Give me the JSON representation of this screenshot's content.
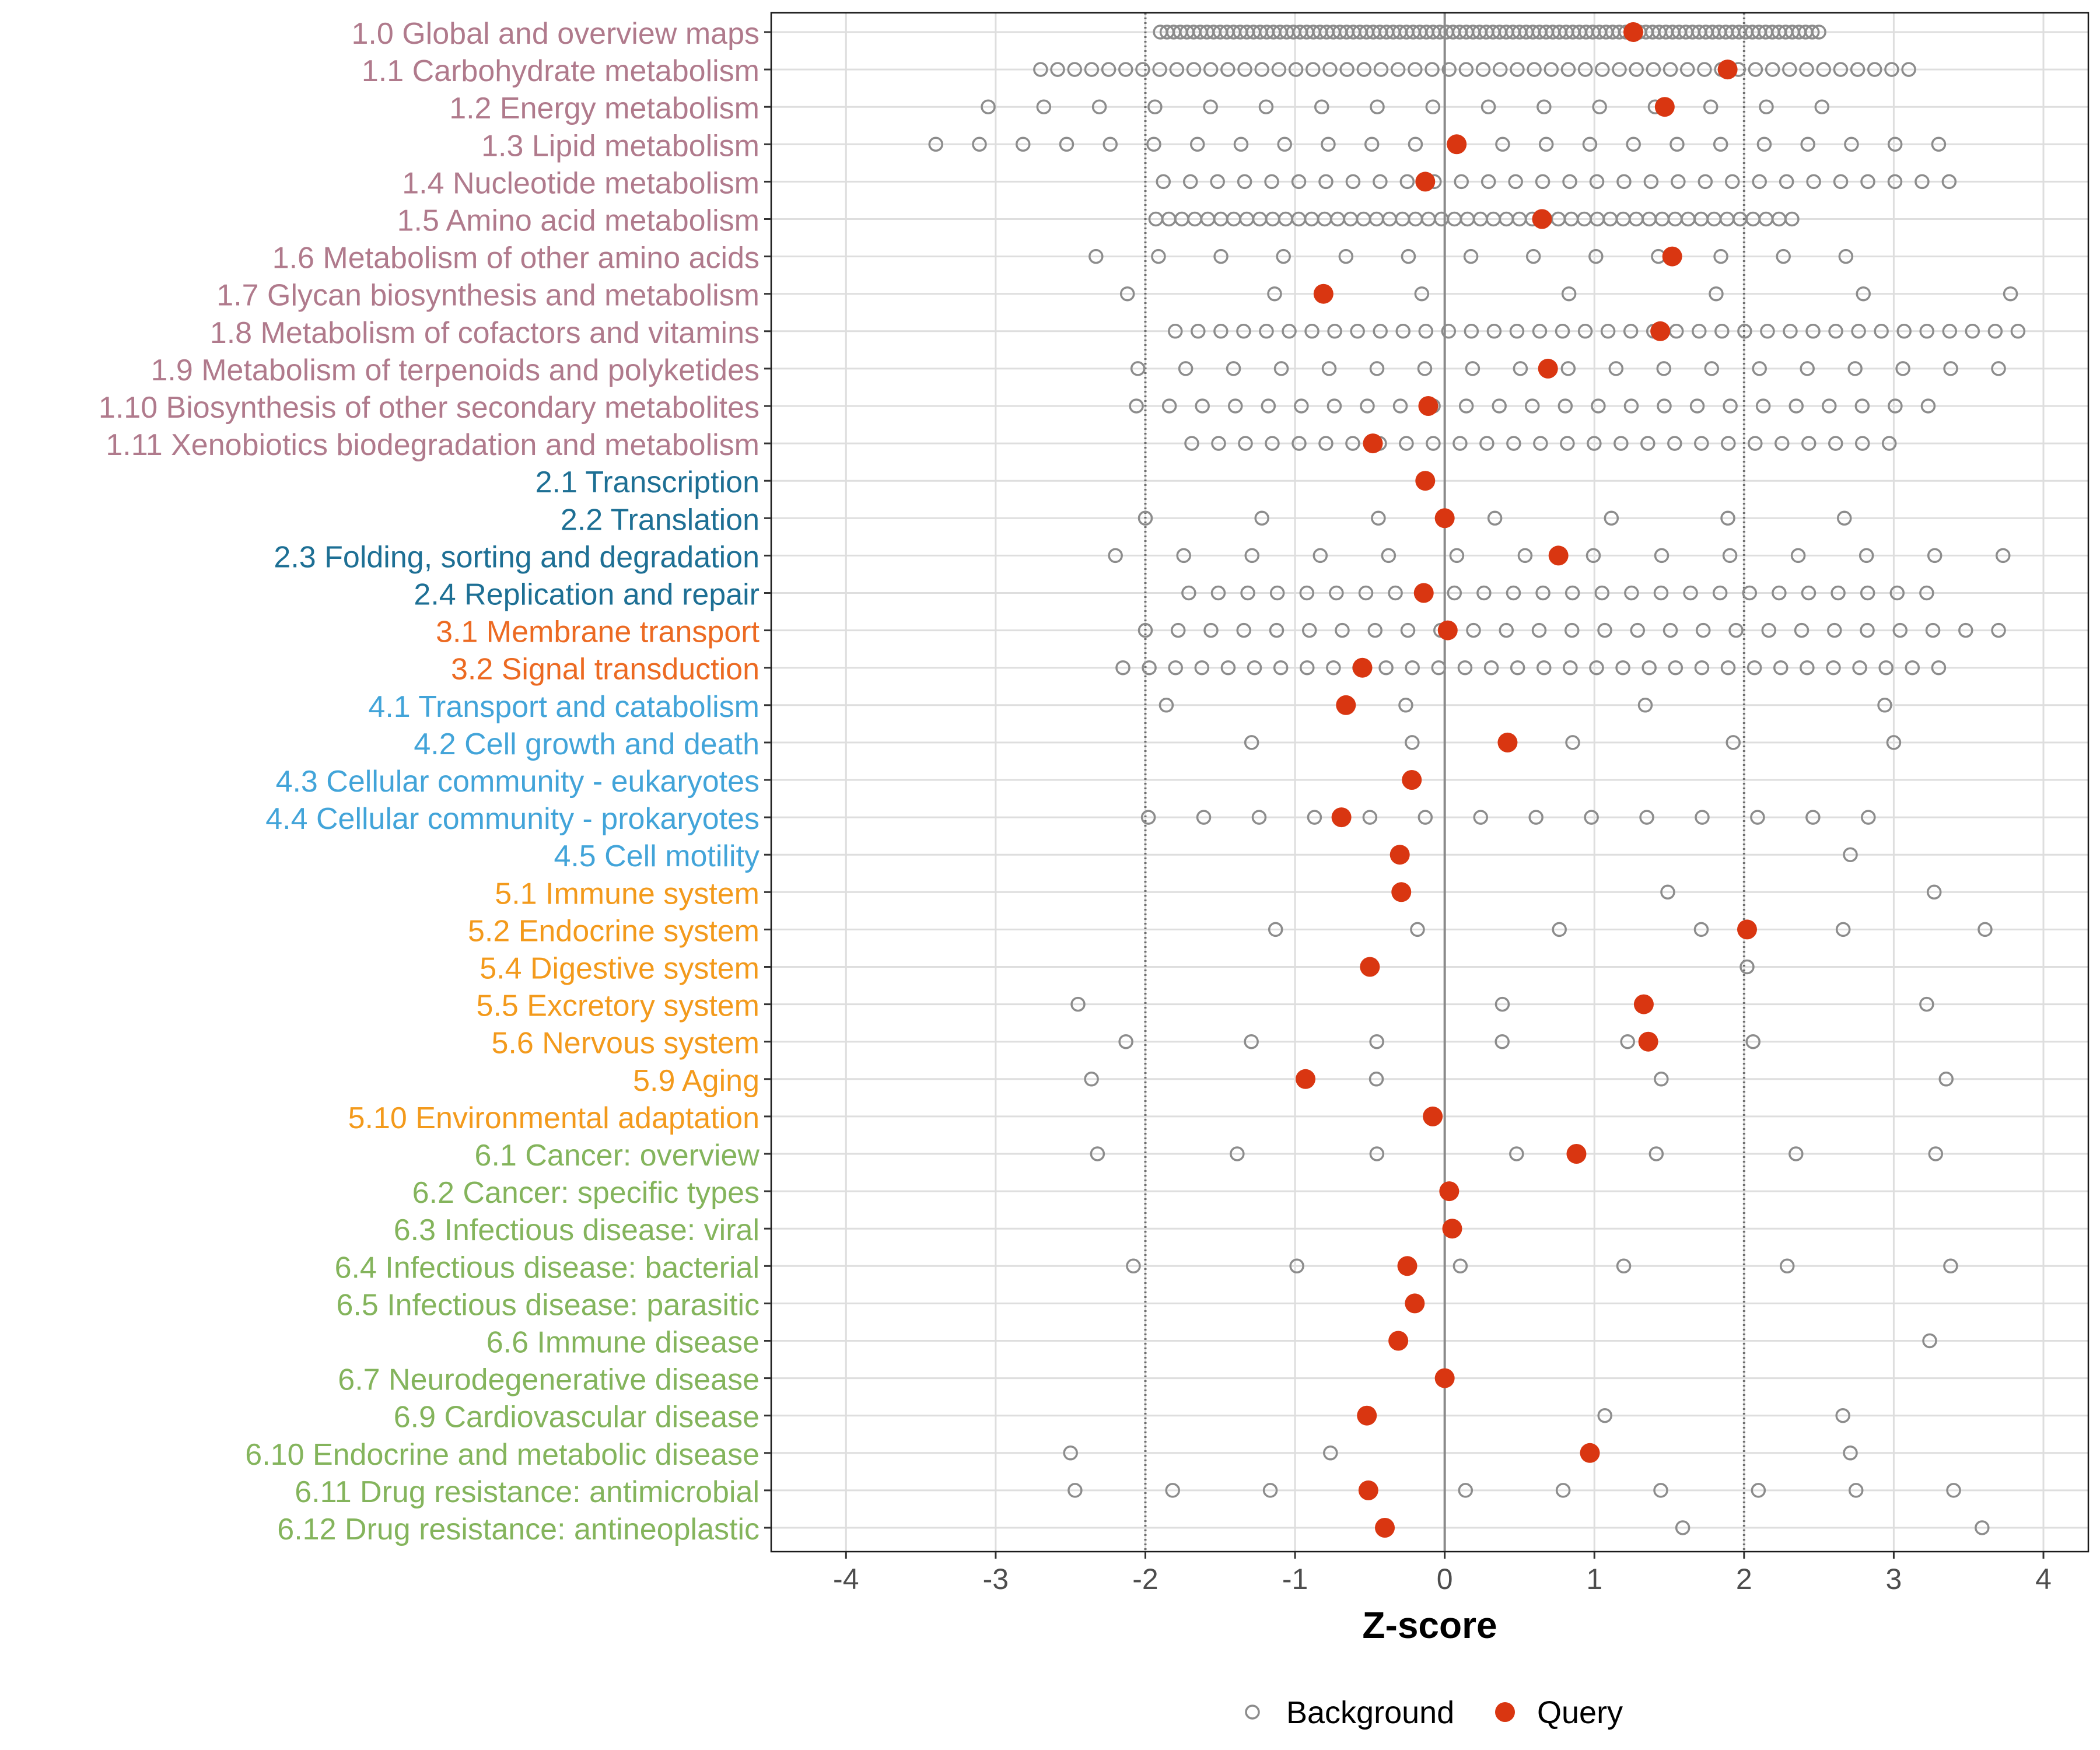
{
  "chart_data": {
    "type": "scatter",
    "title": "",
    "xlabel": "Z-score",
    "ylabel": "",
    "xlim": [
      -4.5,
      4.3
    ],
    "xticks": [
      "-4",
      "-3",
      "-2",
      "-1",
      "0",
      "1",
      "2",
      "3",
      "4"
    ],
    "xtick_values": [
      -4,
      -3,
      -2,
      -1,
      0,
      1,
      2,
      3,
      4
    ],
    "reference_lines": {
      "solid": [
        0
      ],
      "dotted": [
        -2,
        2
      ]
    },
    "grid": true,
    "legend": {
      "position": "bottom",
      "entries": [
        {
          "name": "Background",
          "marker": "open-circle",
          "color": "#8c8c8c"
        },
        {
          "name": "Query",
          "marker": "filled-circle",
          "color": "#d93611"
        }
      ]
    },
    "group_colors": {
      "1": "#b07a8c",
      "2": "#1d6f94",
      "3": "#ec6a22",
      "4": "#42a4d9",
      "5": "#f39a1c",
      "6": "#84b45c"
    },
    "categories": [
      {
        "label": "1.0 Global and overview maps",
        "group": "1",
        "query": 1.26,
        "background_range": [
          -1.9,
          2.5
        ],
        "background_count": 100
      },
      {
        "label": "1.1 Carbohydrate metabolism",
        "group": "1",
        "query": 1.89,
        "background_range": [
          -2.7,
          3.1
        ],
        "background_count": 52
      },
      {
        "label": "1.2 Energy metabolism",
        "group": "1",
        "query": 1.47,
        "background_range": [
          -3.05,
          2.52
        ],
        "background_count": 16
      },
      {
        "label": "1.3 Lipid metabolism",
        "group": "1",
        "query": 0.08,
        "background_range": [
          -3.4,
          3.3
        ],
        "background_count": 24
      },
      {
        "label": "1.4 Nucleotide metabolism",
        "group": "1",
        "query": -0.13,
        "background_range": [
          -1.88,
          3.37
        ],
        "background_count": 30
      },
      {
        "label": "1.5 Amino acid metabolism",
        "group": "1",
        "query": 0.65,
        "background_range": [
          -1.93,
          2.32
        ],
        "background_count": 50
      },
      {
        "label": "1.6 Metabolism of other amino acids",
        "group": "1",
        "query": 1.52,
        "background_range": [
          -2.33,
          2.68
        ],
        "background_count": 13
      },
      {
        "label": "1.7 Glycan biosynthesis and metabolism",
        "group": "1",
        "query": -0.81,
        "background_range": [
          -2.12,
          3.78
        ],
        "background_count": 7
      },
      {
        "label": "1.8 Metabolism of cofactors and vitamins",
        "group": "1",
        "query": 1.44,
        "background_range": [
          -1.8,
          3.83
        ],
        "background_count": 38
      },
      {
        "label": "1.9 Metabolism of terpenoids and polyketides",
        "group": "1",
        "query": 0.69,
        "background_range": [
          -2.05,
          3.7
        ],
        "background_count": 19
      },
      {
        "label": "1.10 Biosynthesis of other secondary metabolites",
        "group": "1",
        "query": -0.11,
        "background_range": [
          -2.06,
          3.23
        ],
        "background_count": 25
      },
      {
        "label": "1.11 Xenobiotics biodegradation and metabolism",
        "group": "1",
        "query": -0.48,
        "background_range": [
          -1.69,
          2.97
        ],
        "background_count": 27
      },
      {
        "label": "2.1 Transcription",
        "group": "2",
        "query": -0.13,
        "background_range": null,
        "background_count": 0
      },
      {
        "label": "2.2 Translation",
        "group": "2",
        "query": 0.0,
        "background_range": [
          -2.0,
          2.67
        ],
        "background_count": 7
      },
      {
        "label": "2.3 Folding, sorting and degradation",
        "group": "2",
        "query": 0.76,
        "background_range": [
          -2.2,
          3.73
        ],
        "background_count": 14
      },
      {
        "label": "2.4 Replication and repair",
        "group": "2",
        "query": -0.14,
        "background_range": [
          -1.71,
          3.22
        ],
        "background_count": 26
      },
      {
        "label": "3.1 Membrane transport",
        "group": "3",
        "query": 0.02,
        "background_range": [
          -2.0,
          3.7
        ],
        "background_count": 27
      },
      {
        "label": "3.2 Signal transduction",
        "group": "3",
        "query": -0.55,
        "background_range": [
          -2.15,
          3.3
        ],
        "background_count": 32
      },
      {
        "label": "4.1 Transport and catabolism",
        "group": "4",
        "query": -0.66,
        "background_range": [
          -1.86,
          2.94
        ],
        "background_count": 4
      },
      {
        "label": "4.2 Cell growth and death",
        "group": "4",
        "query": 0.42,
        "background_range": [
          -1.29,
          3.0
        ],
        "background_count": 5
      },
      {
        "label": "4.3 Cellular community - eukaryotes",
        "group": "4",
        "query": -0.22,
        "background_range": null,
        "background_count": 0
      },
      {
        "label": "4.4 Cellular community - prokaryotes",
        "group": "4",
        "query": -0.69,
        "background_range": [
          -1.98,
          2.83
        ],
        "background_count": 14
      },
      {
        "label": "4.5 Cell motility",
        "group": "4",
        "query": -0.3,
        "background_range": [
          2.71,
          2.71
        ],
        "background_count": 1
      },
      {
        "label": "5.1 Immune system",
        "group": "5",
        "query": -0.29,
        "background_range": [
          1.49,
          3.27
        ],
        "background_count": 2
      },
      {
        "label": "5.2 Endocrine system",
        "group": "5",
        "query": 2.02,
        "background_range": [
          -1.13,
          3.61
        ],
        "background_count": 6
      },
      {
        "label": "5.4 Digestive system",
        "group": "5",
        "query": -0.5,
        "background_range": [
          2.02,
          2.02
        ],
        "background_count": 1
      },
      {
        "label": "5.5 Excretory system",
        "group": "5",
        "query": 1.33,
        "background_range": [
          -2.45,
          3.22
        ],
        "background_count": 3
      },
      {
        "label": "5.6 Nervous system",
        "group": "5",
        "query": 1.36,
        "background_range": [
          -2.13,
          2.06
        ],
        "background_count": 6
      },
      {
        "label": "5.9 Aging",
        "group": "5",
        "query": -0.93,
        "background_range": [
          -2.36,
          3.35
        ],
        "background_count": 4
      },
      {
        "label": "5.10 Environmental adaptation",
        "group": "5",
        "query": -0.08,
        "background_range": null,
        "background_count": 0
      },
      {
        "label": "6.1 Cancer: overview",
        "group": "6",
        "query": 0.88,
        "background_range": [
          -2.32,
          3.28
        ],
        "background_count": 7
      },
      {
        "label": "6.2 Cancer: specific types",
        "group": "6",
        "query": 0.03,
        "background_range": null,
        "background_count": 0
      },
      {
        "label": "6.3 Infectious disease: viral",
        "group": "6",
        "query": 0.05,
        "background_range": null,
        "background_count": 0
      },
      {
        "label": "6.4 Infectious disease: bacterial",
        "group": "6",
        "query": -0.25,
        "background_range": [
          -2.08,
          3.38
        ],
        "background_count": 6
      },
      {
        "label": "6.5 Infectious disease: parasitic",
        "group": "6",
        "query": -0.2,
        "background_range": null,
        "background_count": 0
      },
      {
        "label": "6.6 Immune disease",
        "group": "6",
        "query": -0.31,
        "background_range": [
          3.24,
          3.24
        ],
        "background_count": 1
      },
      {
        "label": "6.7 Neurodegenerative disease",
        "group": "6",
        "query": 0.0,
        "background_range": null,
        "background_count": 0
      },
      {
        "label": "6.9 Cardiovascular disease",
        "group": "6",
        "query": -0.52,
        "background_range": [
          1.07,
          2.66
        ],
        "background_count": 2
      },
      {
        "label": "6.10 Endocrine and metabolic disease",
        "group": "6",
        "query": 0.97,
        "background_range": [
          -2.5,
          2.71
        ],
        "background_count": 4
      },
      {
        "label": "6.11 Drug resistance: antimicrobial",
        "group": "6",
        "query": -0.51,
        "background_range": [
          -2.47,
          3.4
        ],
        "background_count": 10
      },
      {
        "label": "6.12 Drug resistance: antineoplastic",
        "group": "6",
        "query": -0.4,
        "background_range": [
          1.59,
          3.59
        ],
        "background_count": 2
      }
    ]
  }
}
